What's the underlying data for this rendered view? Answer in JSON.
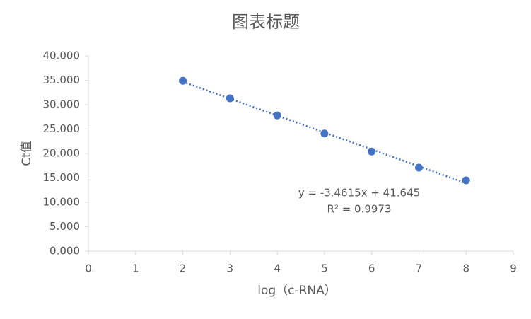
{
  "chart_data": {
    "type": "scatter",
    "title": "图表标题",
    "x_label": "log（c-RNA）",
    "y_label": "Ct值",
    "series": [
      {
        "name": "Ct值",
        "color": "#4472c4",
        "x": [
          2,
          3,
          4,
          5,
          6,
          7,
          8
        ],
        "values": [
          34.9,
          31.3,
          27.8,
          24.1,
          20.4,
          17.1,
          14.5
        ]
      }
    ],
    "trendline": {
      "style": "dotted",
      "equation": "y = -3.4615x + 41.645",
      "r_squared": "R² = 0.9973"
    },
    "xlim": [
      0,
      9
    ],
    "xticks": [
      0,
      1,
      2,
      3,
      4,
      5,
      6,
      7,
      8,
      9
    ],
    "ylim": [
      0,
      40
    ],
    "yticks": [
      {
        "value": 0,
        "label": "0.000"
      },
      {
        "value": 5,
        "label": "5.000"
      },
      {
        "value": 10,
        "label": "10.000"
      },
      {
        "value": 15,
        "label": "15.000"
      },
      {
        "value": 20,
        "label": "20.000"
      },
      {
        "value": 25,
        "label": "25.000"
      },
      {
        "value": 30,
        "label": "30.000"
      },
      {
        "value": 35,
        "label": "35.000"
      },
      {
        "value": 40,
        "label": "40.000"
      }
    ],
    "grid": false
  }
}
